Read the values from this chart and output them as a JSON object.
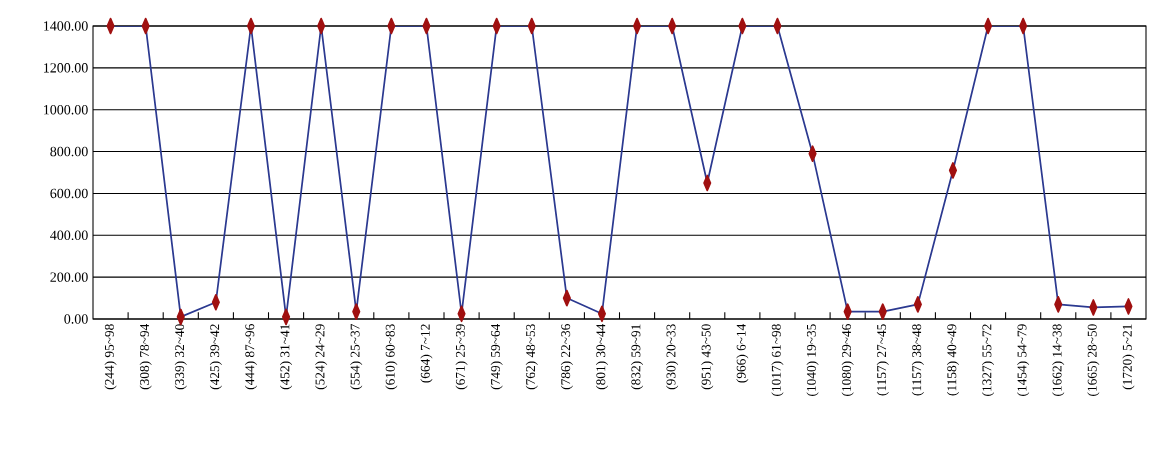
{
  "chart_data": {
    "type": "line",
    "categories": [
      "(244) 95~98",
      "(308) 78~94",
      "(339) 32~40",
      "(425) 39~42",
      "(444) 87~96",
      "(452) 31~41",
      "(524) 24~29",
      "(554) 25~37",
      "(610) 60~83",
      "(664) 7~12",
      "(671) 25~39",
      "(749) 59~64",
      "(762) 48~53",
      "(786) 22~36",
      "(801) 30~44",
      "(832) 59~91",
      "(930) 20~33",
      "(951) 43~50",
      "(966) 6~14",
      "(1017) 61~98",
      "(1040) 19~35",
      "(1080) 29~46",
      "(1157) 27~45",
      "(1157) 38~48",
      "(1158) 40~49",
      "(1327) 55~72",
      "(1454) 54~79",
      "(1662) 14~38",
      "(1665) 28~50",
      "(1720) 5~21"
    ],
    "series": [
      {
        "color": "#2b3990",
        "values": [
          1400,
          1400,
          10,
          80,
          1400,
          10,
          1400,
          35,
          1400,
          1400,
          25,
          1400,
          1400,
          100,
          25,
          1400,
          1400,
          650,
          1400,
          1400,
          790,
          35,
          35,
          70,
          710,
          1400,
          1400,
          70,
          55,
          60
        ]
      }
    ],
    "ylim": [
      0,
      1400
    ],
    "yticks": [
      {
        "value": 0,
        "label": "0.00"
      },
      {
        "value": 200,
        "label": "200.00"
      },
      {
        "value": 400,
        "label": "400.00"
      },
      {
        "value": 600,
        "label": "600.00"
      },
      {
        "value": 800,
        "label": "800.00"
      },
      {
        "value": 1000,
        "label": "1000.00"
      },
      {
        "value": 1200,
        "label": "1200.00"
      },
      {
        "value": 1400,
        "label": "1400.00"
      }
    ],
    "grid": "y",
    "marker": "diamond",
    "line_style": "solid"
  }
}
